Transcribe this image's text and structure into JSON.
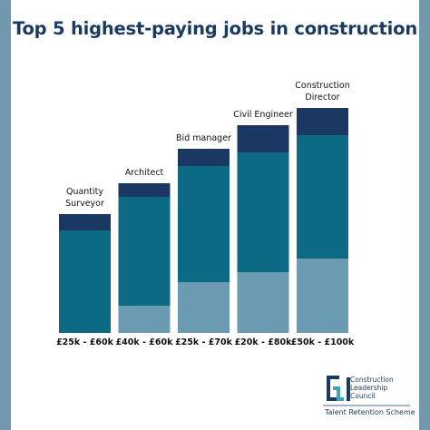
{
  "chart_data": {
    "type": "bar",
    "stacked": true,
    "title": "Top 5 highest-paying jobs in construction",
    "categories": [
      "Quantity Surveyor",
      "Architect",
      "Bid manager",
      "Civil Engineer",
      "Construction Director"
    ],
    "ranges": [
      "£25k - £60k",
      "£40k - £60k",
      "£25k - £70k",
      "£20k - £80k",
      "£50k - £100k"
    ],
    "series": [
      {
        "color": "#6b9bb0",
        "values": [
          0,
          30,
          56,
          67,
          82
        ]
      },
      {
        "color": "#0d6a85",
        "values": [
          113,
          120,
          128,
          132,
          136
        ]
      },
      {
        "color": "#1b3862",
        "values": [
          18,
          15,
          19,
          30,
          30
        ]
      }
    ]
  },
  "logo": {
    "lines": [
      "Construction",
      "Leadership",
      "Council"
    ],
    "scheme": "Talent Retention Scheme"
  }
}
